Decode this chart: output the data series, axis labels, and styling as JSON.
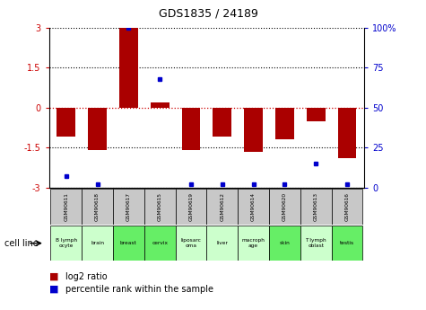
{
  "title": "GDS1835 / 24189",
  "samples": [
    "GSM90611",
    "GSM90618",
    "GSM90617",
    "GSM90615",
    "GSM90619",
    "GSM90612",
    "GSM90614",
    "GSM90620",
    "GSM90613",
    "GSM90616"
  ],
  "cell_lines": [
    "B lymph\nocyte",
    "brain",
    "breast",
    "cervix",
    "liposarc\noma",
    "liver",
    "macroph\nage",
    "skin",
    "T lymph\noblast",
    "testis"
  ],
  "cell_line_colors": [
    "#ccffcc",
    "#ccffcc",
    "#66ee66",
    "#66ee66",
    "#ccffcc",
    "#ccffcc",
    "#ccffcc",
    "#66ee66",
    "#ccffcc",
    "#66ee66"
  ],
  "log2_ratio": [
    -1.1,
    -1.6,
    3.0,
    0.2,
    -1.6,
    -1.1,
    -1.65,
    -1.2,
    -0.5,
    -1.9
  ],
  "percentile_rank": [
    7,
    2,
    100,
    68,
    2,
    2,
    2,
    2,
    15,
    2
  ],
  "ylim_left": [
    -3,
    3
  ],
  "ylim_right": [
    0,
    100
  ],
  "bar_color": "#aa0000",
  "dot_color": "#0000cc",
  "zero_line_color": "#cc0000",
  "grid_color": "#000000",
  "yticks_left": [
    -3,
    -1.5,
    0,
    1.5,
    3
  ],
  "ytick_labels_left": [
    "-3",
    "-1.5",
    "0",
    "1.5",
    "3"
  ],
  "yticks_right": [
    0,
    25,
    50,
    75,
    100
  ],
  "ytick_labels_right": [
    "0",
    "25",
    "50",
    "75",
    "100%"
  ]
}
